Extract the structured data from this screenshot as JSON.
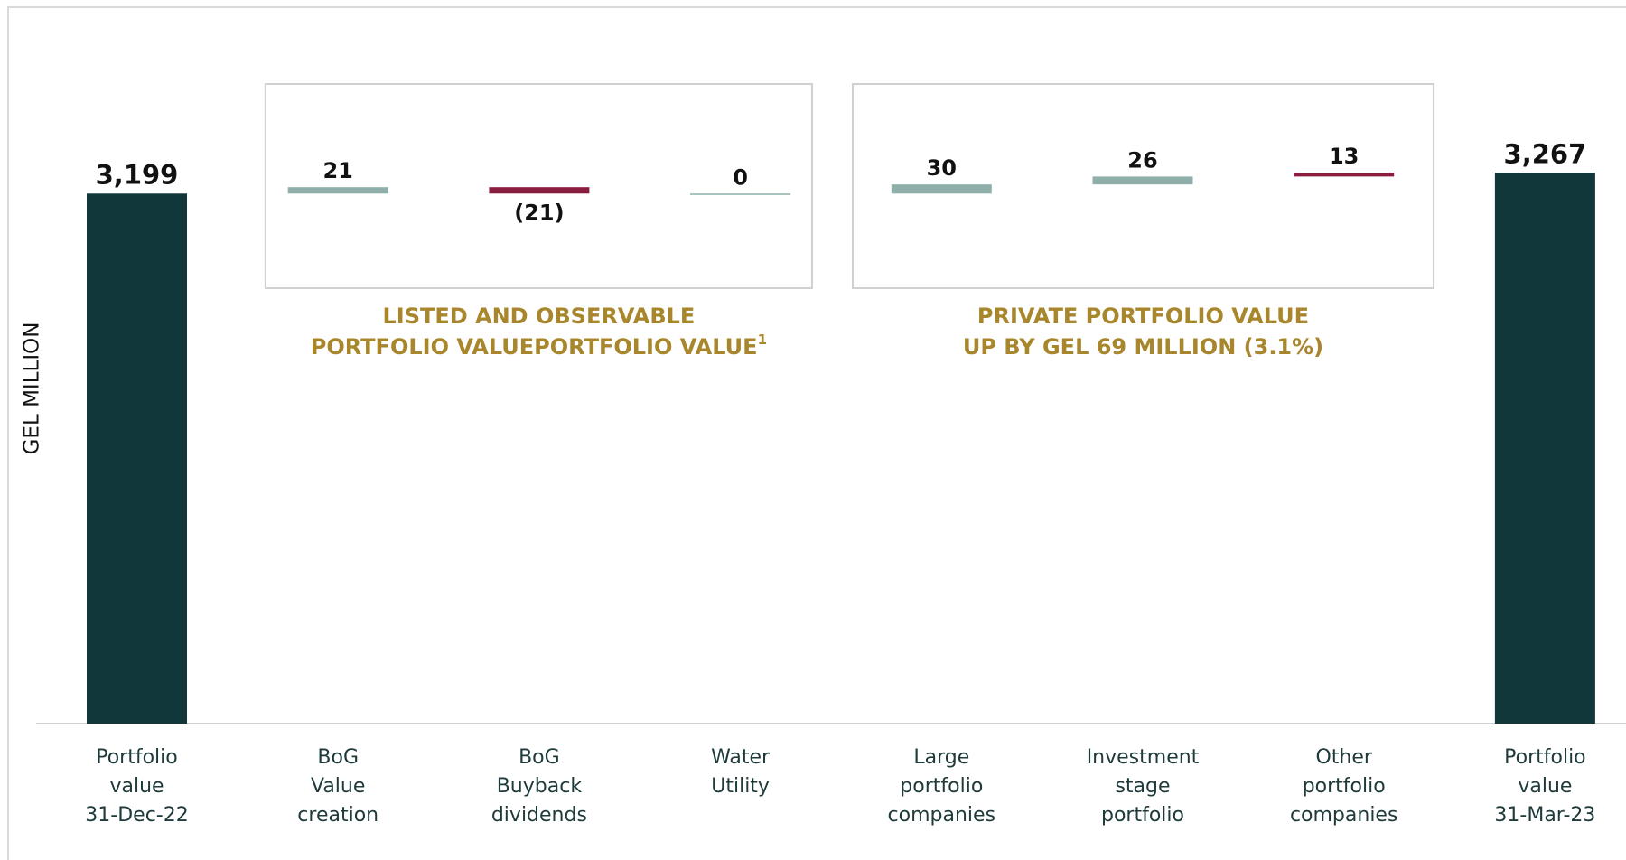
{
  "chart_data": {
    "type": "waterfall",
    "y_label": "GEL MILLION",
    "categories": [
      [
        "Portfolio",
        "value",
        "31-Dec-22"
      ],
      [
        "BoG",
        "Value",
        "creation"
      ],
      [
        "BoG",
        "Buyback",
        "dividends"
      ],
      [
        "Water",
        "Utility"
      ],
      [
        "Large",
        "portfolio",
        "companies"
      ],
      [
        "Investment",
        "stage",
        "portfolio"
      ],
      [
        "Other",
        "portfolio",
        "companies"
      ],
      [
        "Portfolio",
        "value",
        "31-Mar-23"
      ]
    ],
    "measures": [
      "total",
      "relative",
      "relative",
      "relative",
      "relative",
      "relative",
      "relative",
      "total"
    ],
    "values": [
      3199,
      21,
      -21,
      0,
      30,
      26,
      13,
      3267
    ],
    "value_labels": [
      "3,199",
      "21",
      "(21)",
      "0",
      "30",
      "26",
      "13",
      "3,267"
    ],
    "colors": [
      "#12373a",
      "#8fb0aa",
      "#8b1e3f",
      "#8fb0aa",
      "#8fb0aa",
      "#8fb0aa",
      "#8b1e3f",
      "#12373a"
    ],
    "ylim": [
      1460,
      3800
    ],
    "groups": [
      {
        "title": [
          "LISTED AND OBSERVABLE",
          "PORTFOLIO VALUE"
        ],
        "footnote_mark": "1",
        "first": 1,
        "last": 3
      },
      {
        "title": [
          "PRIVATE PORTFOLIO VALUE",
          "UP BY GEL 69 MILLION (3.1%)"
        ],
        "first": 4,
        "last": 6
      }
    ]
  }
}
